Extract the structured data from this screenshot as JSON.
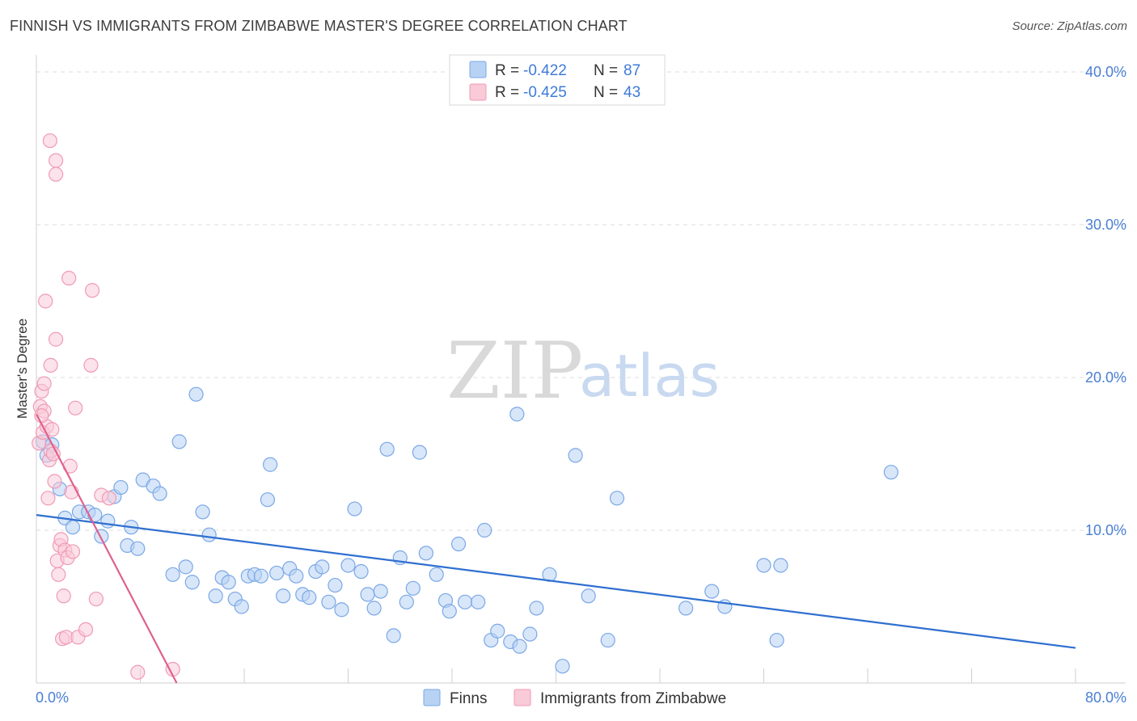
{
  "title": "FINNISH VS IMMIGRANTS FROM ZIMBABWE MASTER'S DEGREE CORRELATION CHART",
  "source": "Source: ZipAtlas.com",
  "watermark": {
    "zip": "ZIP",
    "atlas": "atlas"
  },
  "legend_top": [
    {
      "r_label": "R = ",
      "r_value": "-0.422",
      "n_label": "N = ",
      "n_value": "87",
      "color": "#a9c8f0"
    },
    {
      "r_label": "R = ",
      "r_value": "-0.425",
      "n_label": "N = ",
      "n_value": "43",
      "color": "#f6b8cb"
    }
  ],
  "chart_data": {
    "type": "scatter",
    "title": "FINNISH VS IMMIGRANTS FROM ZIMBABWE MASTER'S DEGREE CORRELATION CHART",
    "xlabel": "",
    "ylabel": "Master's Degree",
    "xlim": [
      0,
      80
    ],
    "ylim": [
      0,
      40
    ],
    "x_tick_labels": [
      "0.0%",
      "80.0%"
    ],
    "y_tick_labels": [
      "10.0%",
      "20.0%",
      "30.0%",
      "40.0%"
    ],
    "y_ticks": [
      10,
      20,
      30,
      40
    ],
    "grid": true,
    "legend_position": "top-center",
    "series": [
      {
        "name": "Finns",
        "color": "#7aa8e6",
        "fill": "#b8d2f4",
        "line_color": "#2f6fd0",
        "trend": [
          [
            0,
            11.0
          ],
          [
            80,
            2.3
          ]
        ],
        "points": [
          [
            0.5,
            15.8
          ],
          [
            1.2,
            15.6
          ],
          [
            1.8,
            12.7
          ],
          [
            2.2,
            10.8
          ],
          [
            2.8,
            10.2
          ],
          [
            3.3,
            11.2
          ],
          [
            4.0,
            11.2
          ],
          [
            4.5,
            11.0
          ],
          [
            5.0,
            9.6
          ],
          [
            5.5,
            10.6
          ],
          [
            6.0,
            12.2
          ],
          [
            6.5,
            12.8
          ],
          [
            7.0,
            9.0
          ],
          [
            7.8,
            8.8
          ],
          [
            8.2,
            13.3
          ],
          [
            9.0,
            12.9
          ],
          [
            9.5,
            12.4
          ],
          [
            7.3,
            10.2
          ],
          [
            10.5,
            7.1
          ],
          [
            11.0,
            15.8
          ],
          [
            11.5,
            7.6
          ],
          [
            12.0,
            6.6
          ],
          [
            12.3,
            18.9
          ],
          [
            12.8,
            11.2
          ],
          [
            13.3,
            9.7
          ],
          [
            13.8,
            5.7
          ],
          [
            14.3,
            6.9
          ],
          [
            14.8,
            6.6
          ],
          [
            15.3,
            5.5
          ],
          [
            15.8,
            5.0
          ],
          [
            16.3,
            7.0
          ],
          [
            16.8,
            7.1
          ],
          [
            17.3,
            7.0
          ],
          [
            18.0,
            14.3
          ],
          [
            17.8,
            12.0
          ],
          [
            18.5,
            7.2
          ],
          [
            19.0,
            5.7
          ],
          [
            19.5,
            7.5
          ],
          [
            20.0,
            7.0
          ],
          [
            20.5,
            5.8
          ],
          [
            21.0,
            5.6
          ],
          [
            21.5,
            7.3
          ],
          [
            22.0,
            7.6
          ],
          [
            22.5,
            5.3
          ],
          [
            23.0,
            6.4
          ],
          [
            23.5,
            4.8
          ],
          [
            24.0,
            7.7
          ],
          [
            24.5,
            11.4
          ],
          [
            25.0,
            7.3
          ],
          [
            25.5,
            5.8
          ],
          [
            26.0,
            4.9
          ],
          [
            26.5,
            6.0
          ],
          [
            27.0,
            15.3
          ],
          [
            27.5,
            3.1
          ],
          [
            28.0,
            8.2
          ],
          [
            28.5,
            5.3
          ],
          [
            29.0,
            6.2
          ],
          [
            29.5,
            15.1
          ],
          [
            30.0,
            8.5
          ],
          [
            30.8,
            7.1
          ],
          [
            31.5,
            5.4
          ],
          [
            31.8,
            4.7
          ],
          [
            32.5,
            9.1
          ],
          [
            33.0,
            5.3
          ],
          [
            34.0,
            5.3
          ],
          [
            34.5,
            10.0
          ],
          [
            35.0,
            2.8
          ],
          [
            35.5,
            3.4
          ],
          [
            36.5,
            2.7
          ],
          [
            37.0,
            17.6
          ],
          [
            37.2,
            2.4
          ],
          [
            38.0,
            3.2
          ],
          [
            38.5,
            4.9
          ],
          [
            39.5,
            7.1
          ],
          [
            40.5,
            1.1
          ],
          [
            41.5,
            14.9
          ],
          [
            42.5,
            5.7
          ],
          [
            44.0,
            2.8
          ],
          [
            44.7,
            12.1
          ],
          [
            50.0,
            4.9
          ],
          [
            52.0,
            6.0
          ],
          [
            53.0,
            5.0
          ],
          [
            56.0,
            7.7
          ],
          [
            57.0,
            2.8
          ],
          [
            57.3,
            7.7
          ],
          [
            65.8,
            13.8
          ],
          [
            0.8,
            14.9
          ]
        ]
      },
      {
        "name": "Immigrants from Zimbabwe",
        "color": "#f09ab5",
        "fill": "#f9cad8",
        "line_color": "#e0608e",
        "trend": [
          [
            0,
            17.6
          ],
          [
            10.8,
            0.0
          ]
        ],
        "points": [
          [
            0.2,
            15.7
          ],
          [
            0.3,
            18.1
          ],
          [
            0.4,
            19.1
          ],
          [
            0.5,
            16.4
          ],
          [
            0.6,
            17.8
          ],
          [
            0.7,
            25.0
          ],
          [
            0.8,
            16.8
          ],
          [
            0.9,
            12.1
          ],
          [
            1.0,
            14.6
          ],
          [
            1.1,
            15.2
          ],
          [
            1.2,
            16.6
          ],
          [
            1.3,
            15.0
          ],
          [
            1.4,
            13.2
          ],
          [
            1.5,
            22.5
          ],
          [
            1.6,
            8.0
          ],
          [
            1.7,
            7.1
          ],
          [
            1.8,
            9.0
          ],
          [
            1.9,
            9.4
          ],
          [
            2.0,
            2.9
          ],
          [
            2.1,
            5.7
          ],
          [
            2.2,
            8.7
          ],
          [
            2.3,
            3.0
          ],
          [
            2.4,
            8.2
          ],
          [
            2.5,
            26.5
          ],
          [
            2.6,
            14.2
          ],
          [
            2.7,
            12.5
          ],
          [
            2.8,
            8.6
          ],
          [
            3.0,
            18.0
          ],
          [
            3.2,
            3.0
          ],
          [
            3.8,
            3.5
          ],
          [
            4.2,
            20.8
          ],
          [
            4.3,
            25.7
          ],
          [
            4.6,
            5.5
          ],
          [
            5.0,
            12.3
          ],
          [
            5.6,
            12.1
          ],
          [
            1.05,
            35.5
          ],
          [
            1.5,
            34.2
          ],
          [
            1.5,
            33.3
          ],
          [
            1.1,
            20.8
          ],
          [
            0.6,
            19.6
          ],
          [
            0.4,
            17.5
          ],
          [
            7.8,
            0.7
          ],
          [
            10.5,
            0.9
          ]
        ]
      }
    ]
  }
}
